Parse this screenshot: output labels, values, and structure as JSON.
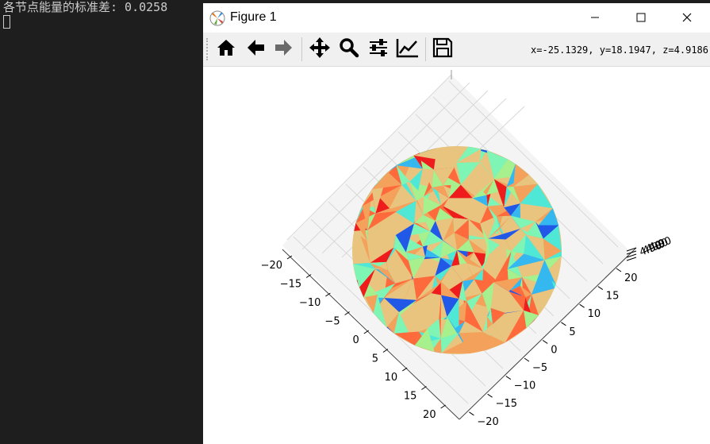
{
  "console": {
    "text": "各节点能量的标准差: 0.0258"
  },
  "window": {
    "title": "Figure 1",
    "controls": {
      "minimize": "minimize-icon",
      "maximize": "maximize-icon",
      "close": "close-icon"
    }
  },
  "toolbar": {
    "buttons": [
      {
        "name": "home",
        "icon": "home-icon"
      },
      {
        "name": "back",
        "icon": "arrow-left-icon"
      },
      {
        "name": "forward",
        "icon": "arrow-right-icon"
      },
      {
        "name": "pan",
        "icon": "move-icon"
      },
      {
        "name": "zoom",
        "icon": "zoom-icon"
      },
      {
        "name": "configure-subplots",
        "icon": "sliders-icon"
      },
      {
        "name": "edit-axis",
        "icon": "line-chart-icon"
      },
      {
        "name": "save",
        "icon": "save-icon"
      }
    ],
    "coords": "x=-25.1329, y=18.1947, z=4.9186"
  },
  "plot": {
    "left_axis_ticks": [
      "−20",
      "−15",
      "−10",
      "−5",
      "0",
      "5",
      "10",
      "15",
      "20"
    ],
    "right_axis_ticks": [
      "20",
      "15",
      "10",
      "5",
      "0",
      "−5",
      "−10",
      "−15",
      "−20"
    ],
    "z_axis_ticks_label": "4.90",
    "colors": {
      "deep_red": "#ee1c1c",
      "orange_red": "#ff6a3d",
      "orange": "#f4a15c",
      "tan": "#e8c47e",
      "light_green": "#a6f08e",
      "mint": "#7ff5b5",
      "cyan": "#4fe8d6",
      "sky": "#35b8f0",
      "blue": "#2258e8"
    }
  }
}
